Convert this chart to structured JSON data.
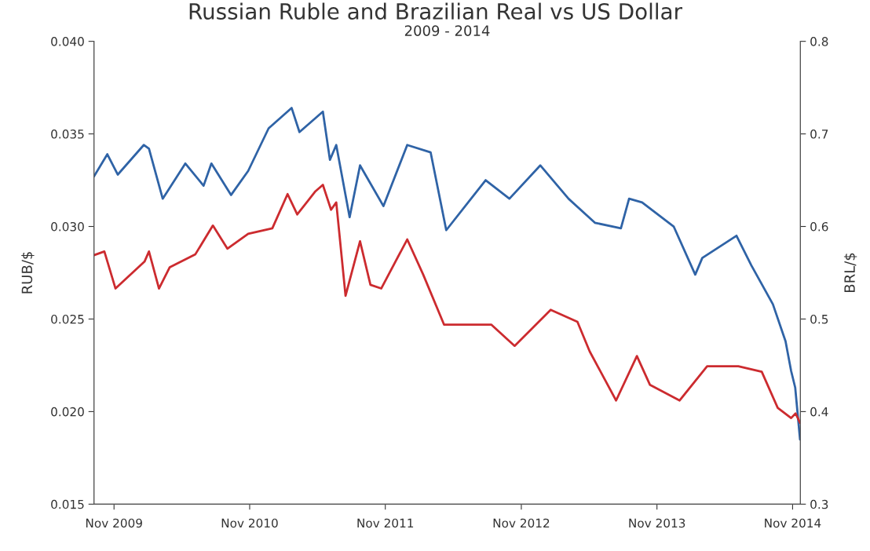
{
  "chart_data": {
    "type": "line",
    "title": "Russian Ruble and Brazilian Real vs US Dollar",
    "subtitle": "2009 - 2014",
    "ylabel": "RUB/$",
    "y2label": "BRL/$",
    "xlim": [
      "2009-09-08",
      "2014-11-22"
    ],
    "xticks": [
      {
        "value": "2009-11-01",
        "label": "Nov 2009"
      },
      {
        "value": "2010-11-01",
        "label": "Nov 2010"
      },
      {
        "value": "2011-11-01",
        "label": "Nov 2011"
      },
      {
        "value": "2012-11-01",
        "label": "Nov 2012"
      },
      {
        "value": "2013-11-01",
        "label": "Nov 2013"
      },
      {
        "value": "2014-11-01",
        "label": "Nov 2014"
      }
    ],
    "ylim": [
      0.015,
      0.04
    ],
    "yticks": [
      {
        "value": 0.015,
        "label": "0.015"
      },
      {
        "value": 0.02,
        "label": "0.020"
      },
      {
        "value": 0.025,
        "label": "0.025"
      },
      {
        "value": 0.03,
        "label": "0.030"
      },
      {
        "value": 0.035,
        "label": "0.035"
      },
      {
        "value": 0.04,
        "label": "0.040"
      }
    ],
    "y2lim": [
      0.3,
      0.8
    ],
    "y2ticks": [
      0.3,
      0.4,
      0.5,
      0.6,
      0.7,
      0.8
    ],
    "grid": false,
    "line_style": "solid",
    "series": [
      {
        "color": "#2f63a6",
        "axis": "y",
        "x": [
          "2009-09-08",
          "2009-10-14",
          "2009-11-11",
          "2010-01-20",
          "2010-02-03",
          "2010-03-12",
          "2010-05-12",
          "2010-06-30",
          "2010-07-21",
          "2010-09-12",
          "2010-10-28",
          "2010-12-22",
          "2011-02-22",
          "2011-03-15",
          "2011-05-17",
          "2011-06-05",
          "2011-06-22",
          "2011-07-28",
          "2011-08-25",
          "2011-10-27",
          "2011-12-30",
          "2012-03-02",
          "2012-04-13",
          "2012-07-28",
          "2012-09-30",
          "2012-12-22",
          "2013-03-08",
          "2013-05-18",
          "2013-07-27",
          "2013-08-18",
          "2013-09-22",
          "2013-12-16",
          "2014-02-12",
          "2014-03-03",
          "2014-06-03",
          "2014-07-13",
          "2014-09-09",
          "2014-10-13",
          "2014-10-28",
          "2014-11-08",
          "2014-11-21"
        ],
        "values": [
          0.0327,
          0.0339,
          0.0328,
          0.0344,
          0.0342,
          0.0315,
          0.0334,
          0.0322,
          0.0334,
          0.0317,
          0.033,
          0.0353,
          0.0364,
          0.0351,
          0.0362,
          0.0336,
          0.0344,
          0.0305,
          0.0333,
          0.0311,
          0.0344,
          0.034,
          0.0298,
          0.0325,
          0.0315,
          0.0333,
          0.0315,
          0.0302,
          0.0299,
          0.0315,
          0.0313,
          0.03,
          0.0274,
          0.0283,
          0.0295,
          0.0279,
          0.0258,
          0.0238,
          0.0222,
          0.0213,
          0.0185
        ]
      },
      {
        "color": "#cc2b2f",
        "axis": "y2",
        "x": [
          "2009-09-08",
          "2009-10-06",
          "2009-11-05",
          "2010-01-22",
          "2010-02-03",
          "2010-03-02",
          "2010-03-31",
          "2010-06-08",
          "2010-07-25",
          "2010-09-02",
          "2010-10-28",
          "2011-01-01",
          "2011-02-11",
          "2011-03-09",
          "2011-04-27",
          "2011-05-17",
          "2011-06-08",
          "2011-06-22",
          "2011-07-17",
          "2011-08-25",
          "2011-09-22",
          "2011-10-21",
          "2011-12-30",
          "2012-02-11",
          "2012-04-07",
          "2012-08-12",
          "2012-10-14",
          "2013-01-19",
          "2013-04-01",
          "2013-05-04",
          "2013-07-14",
          "2013-09-08",
          "2013-10-13",
          "2014-01-01",
          "2014-03-16",
          "2014-06-08",
          "2014-08-10",
          "2014-09-22",
          "2014-10-28",
          "2014-11-09",
          "2014-11-21"
        ],
        "values": [
          0.569,
          0.573,
          0.533,
          0.562,
          0.573,
          0.533,
          0.556,
          0.57,
          0.601,
          0.576,
          0.592,
          0.598,
          0.635,
          0.613,
          0.638,
          0.645,
          0.618,
          0.626,
          0.525,
          0.584,
          0.537,
          0.533,
          0.586,
          0.548,
          0.494,
          0.494,
          0.471,
          0.51,
          0.497,
          0.465,
          0.412,
          0.46,
          0.429,
          0.412,
          0.449,
          0.449,
          0.443,
          0.404,
          0.393,
          0.398,
          0.388
        ]
      }
    ]
  }
}
